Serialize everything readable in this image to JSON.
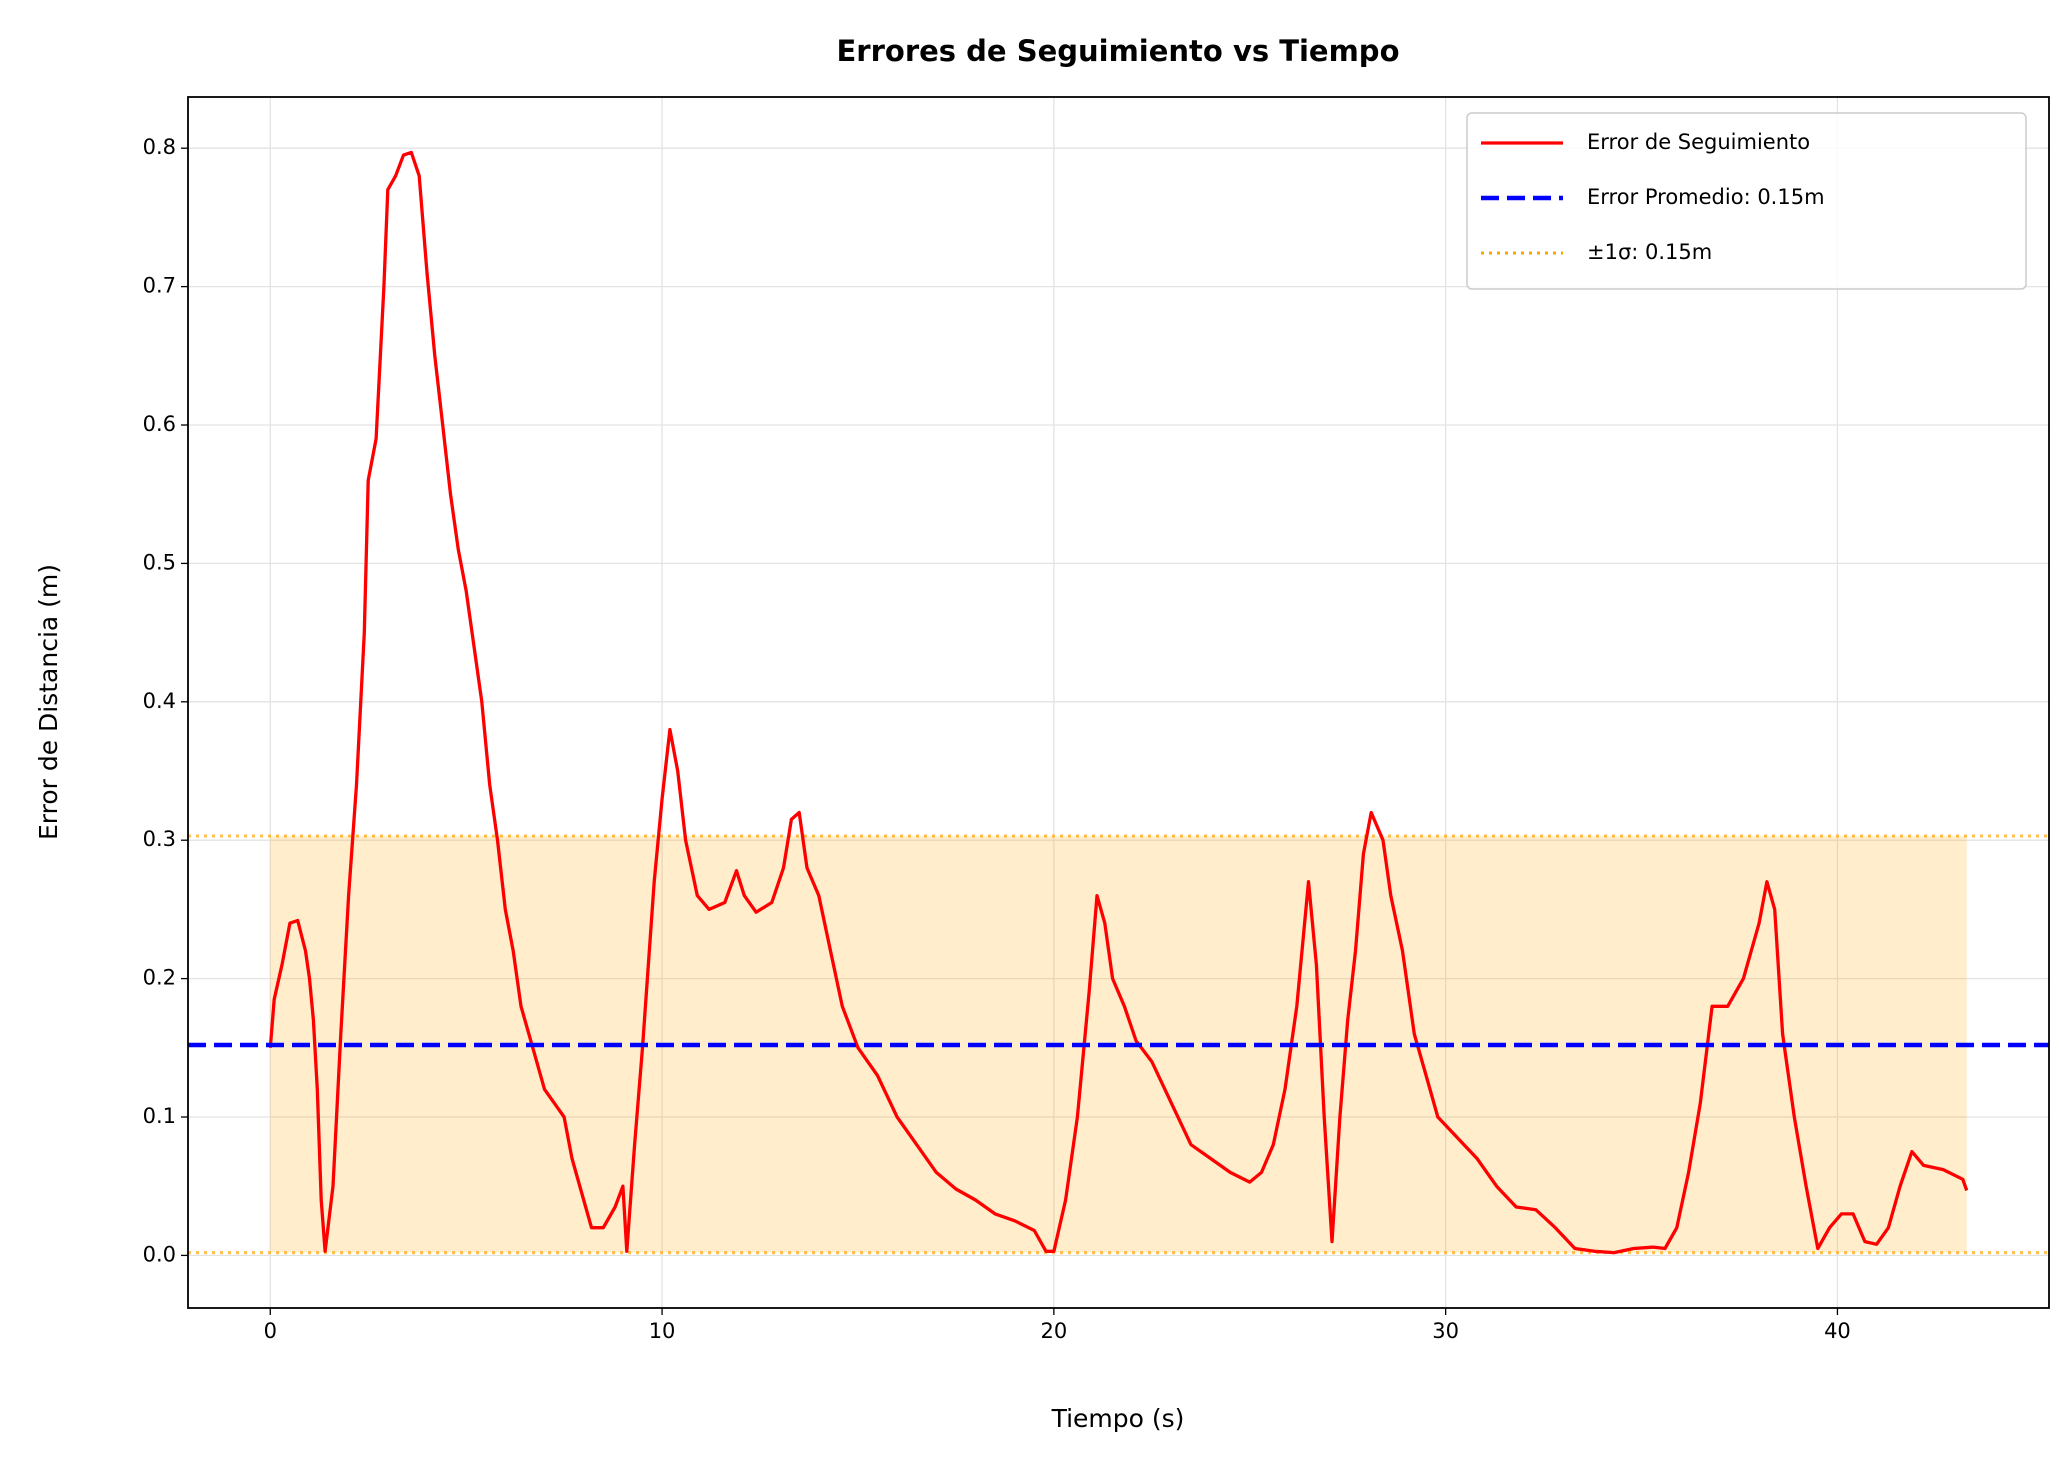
{
  "chart_data": {
    "type": "line",
    "title": "Errores de Seguimiento vs Tiempo",
    "xlabel": "Tiempo (s)",
    "ylabel": "Error de Distancia (m)",
    "xlim": [
      -2.1,
      45.4
    ],
    "ylim": [
      -0.038,
      0.837
    ],
    "xticks": [
      0,
      10,
      20,
      30,
      40
    ],
    "yticks": [
      {
        "value": 0,
        "label": "0.0"
      },
      0.1,
      0.2,
      0.3,
      0.4,
      0.5,
      0.6,
      0.7,
      0.8
    ],
    "grid": true,
    "legend": "upper right",
    "series": [
      {
        "name": "Error de Seguimiento",
        "color": "#ff0000",
        "x": [
          0,
          0.1,
          0.3,
          0.5,
          0.7,
          0.9,
          1.0,
          1.1,
          1.2,
          1.3,
          1.4,
          1.6,
          1.8,
          2.0,
          2.2,
          2.4,
          2.5,
          2.7,
          2.9,
          3.0,
          3.2,
          3.4,
          3.6,
          3.8,
          4.0,
          4.2,
          4.4,
          4.6,
          4.8,
          5.0,
          5.2,
          5.4,
          5.6,
          5.8,
          6.0,
          6.2,
          6.4,
          6.7,
          7.0,
          7.3,
          7.5,
          7.7,
          8.0,
          8.2,
          8.5,
          8.8,
          9.0,
          9.1,
          9.3,
          9.5,
          9.8,
          10.0,
          10.2,
          10.4,
          10.6,
          10.9,
          11.2,
          11.6,
          11.9,
          12.1,
          12.4,
          12.8,
          13.1,
          13.3,
          13.5,
          13.7,
          14.0,
          14.3,
          14.6,
          15.0,
          15.5,
          16.0,
          16.5,
          17.0,
          17.5,
          18.0,
          18.5,
          19.0,
          19.5,
          19.8,
          20.0,
          20.3,
          20.6,
          20.9,
          21.1,
          21.3,
          21.5,
          21.8,
          22.1,
          22.5,
          23.0,
          23.5,
          24.0,
          24.5,
          25.0,
          25.3,
          25.6,
          25.9,
          26.2,
          26.5,
          26.7,
          26.9,
          27.1,
          27.3,
          27.5,
          27.7,
          27.9,
          28.1,
          28.4,
          28.6,
          28.9,
          29.2,
          29.5,
          29.8,
          30.3,
          30.8,
          31.3,
          31.8,
          32.3,
          32.8,
          33.3,
          33.8,
          34.3,
          34.8,
          35.3,
          35.6,
          35.9,
          36.2,
          36.5,
          36.8,
          37.2,
          37.6,
          38.0,
          38.2,
          38.4,
          38.6,
          38.9,
          39.2,
          39.5,
          39.8,
          40.1,
          40.4,
          40.7,
          41.0,
          41.3,
          41.6,
          41.9,
          42.2,
          42.7,
          43.2,
          43.3
        ],
        "values": [
          0.15,
          0.185,
          0.21,
          0.24,
          0.242,
          0.22,
          0.2,
          0.17,
          0.12,
          0.04,
          0.003,
          0.05,
          0.16,
          0.26,
          0.34,
          0.45,
          0.56,
          0.59,
          0.7,
          0.77,
          0.78,
          0.795,
          0.797,
          0.78,
          0.71,
          0.65,
          0.6,
          0.55,
          0.51,
          0.48,
          0.44,
          0.4,
          0.34,
          0.3,
          0.25,
          0.22,
          0.18,
          0.15,
          0.12,
          0.108,
          0.1,
          0.07,
          0.04,
          0.02,
          0.02,
          0.035,
          0.05,
          0.003,
          0.08,
          0.15,
          0.27,
          0.33,
          0.38,
          0.35,
          0.3,
          0.26,
          0.25,
          0.255,
          0.278,
          0.26,
          0.248,
          0.255,
          0.28,
          0.315,
          0.32,
          0.28,
          0.26,
          0.22,
          0.18,
          0.15,
          0.13,
          0.1,
          0.08,
          0.06,
          0.048,
          0.04,
          0.03,
          0.025,
          0.018,
          0.003,
          0.003,
          0.04,
          0.1,
          0.19,
          0.26,
          0.24,
          0.2,
          0.18,
          0.155,
          0.14,
          0.11,
          0.08,
          0.07,
          0.06,
          0.053,
          0.06,
          0.08,
          0.12,
          0.18,
          0.27,
          0.21,
          0.1,
          0.01,
          0.1,
          0.17,
          0.22,
          0.29,
          0.32,
          0.3,
          0.26,
          0.22,
          0.16,
          0.13,
          0.1,
          0.085,
          0.07,
          0.05,
          0.035,
          0.033,
          0.02,
          0.005,
          0.003,
          0.002,
          0.005,
          0.006,
          0.005,
          0.02,
          0.06,
          0.11,
          0.18,
          0.18,
          0.2,
          0.24,
          0.27,
          0.25,
          0.16,
          0.1,
          0.05,
          0.005,
          0.02,
          0.03,
          0.03,
          0.01,
          0.008,
          0.02,
          0.05,
          0.075,
          0.065,
          0.062,
          0.055,
          0.047
        ]
      }
    ],
    "mean_line": {
      "name": "Error Promedio: 0.15m",
      "color": "#0000ff",
      "value": 0.152
    },
    "sigma_band": {
      "name": "±1σ: 0.15m",
      "color": "#ffa500",
      "lower": 0.002,
      "upper": 0.303
    }
  }
}
